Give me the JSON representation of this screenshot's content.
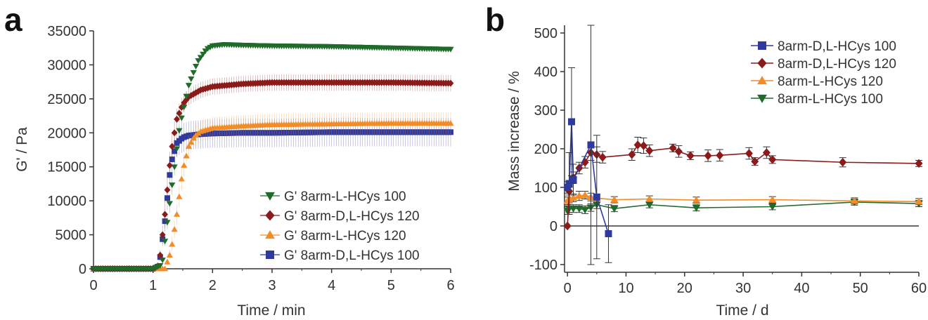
{
  "panel_a": {
    "letter": "a",
    "xlabel": "Time / min",
    "ylabel": "G' / Pa",
    "legend": [
      "G' 8arm-L-HCys 100",
      "G' 8arm-D,L-HCys 120",
      "G' 8arm-L-HCys 120",
      "G' 8arm-D,L-HCys 100"
    ]
  },
  "panel_b": {
    "letter": "b",
    "xlabel": "Time / d",
    "ylabel": "Mass increase / %",
    "legend": [
      "8arm-D,L-HCys 100",
      "8arm-D,L-HCys 120",
      "8arm-L-HCys 120",
      "8arm-L-HCys 100"
    ]
  },
  "colors": {
    "green": "#1f6b2a",
    "darkred": "#8b1a1a",
    "orange": "#f28c28",
    "blue": "#2e3a9e"
  },
  "chart_data": [
    {
      "type": "line",
      "panel": "a",
      "xlabel": "Time / min",
      "ylabel": "G' / Pa",
      "xlim": [
        0,
        6
      ],
      "ylim": [
        0,
        35000
      ],
      "xticks": [
        0,
        1,
        2,
        3,
        4,
        5,
        6
      ],
      "yticks": [
        0,
        5000,
        10000,
        15000,
        20000,
        25000,
        30000,
        35000
      ],
      "grid": false,
      "legend_position": "bottom-right",
      "series": [
        {
          "name": "G' 8arm-L-HCys 100",
          "color": "#1f6b2a",
          "marker": "triangle-down",
          "x": [
            0,
            1.0,
            1.15,
            1.3,
            1.45,
            1.6,
            1.75,
            1.9,
            2.0,
            2.2,
            2.5,
            3,
            4,
            5,
            6
          ],
          "y": [
            0,
            0,
            600,
            11000,
            21000,
            27000,
            30500,
            32300,
            32800,
            33000,
            32900,
            32800,
            32700,
            32500,
            32300
          ],
          "err": [
            0,
            0,
            300,
            1500,
            1000,
            600,
            400,
            300,
            300,
            300,
            300,
            300,
            300,
            300,
            300
          ]
        },
        {
          "name": "G' 8arm-D,L-HCys 120",
          "color": "#8b1a1a",
          "marker": "diamond",
          "x": [
            0,
            1.0,
            1.1,
            1.2,
            1.3,
            1.4,
            1.5,
            1.6,
            1.8,
            2.0,
            2.5,
            3,
            4,
            5,
            6
          ],
          "y": [
            0,
            0,
            500,
            8000,
            17000,
            22000,
            24200,
            25300,
            26300,
            26800,
            27200,
            27400,
            27400,
            27400,
            27300
          ],
          "err": [
            0,
            0,
            400,
            2000,
            2000,
            1500,
            1300,
            1200,
            1200,
            1200,
            1200,
            1200,
            1200,
            1200,
            1200
          ]
        },
        {
          "name": "G' 8arm-L-HCys 120",
          "color": "#f28c28",
          "marker": "triangle-up",
          "x": [
            0,
            1.2,
            1.3,
            1.4,
            1.5,
            1.6,
            1.7,
            1.8,
            2.0,
            2.5,
            3,
            4,
            5,
            6
          ],
          "y": [
            0,
            0,
            2500,
            8000,
            14500,
            18000,
            19500,
            20200,
            20700,
            21000,
            21200,
            21300,
            21400,
            21400
          ],
          "err": [
            0,
            0,
            1000,
            1500,
            1600,
            1600,
            1600,
            1600,
            1600,
            1600,
            1600,
            1600,
            1600,
            1600
          ]
        },
        {
          "name": "G' 8arm-D,L-HCys 100",
          "color": "#2e3a9e",
          "marker": "square",
          "x": [
            0,
            1.0,
            1.1,
            1.2,
            1.3,
            1.4,
            1.5,
            1.6,
            1.8,
            2.0,
            2.5,
            3,
            4,
            5,
            6
          ],
          "y": [
            0,
            0,
            400,
            7000,
            15500,
            18500,
            19300,
            19600,
            19800,
            19900,
            20000,
            20000,
            20100,
            20100,
            20100
          ],
          "err": [
            0,
            0,
            300,
            1500,
            2000,
            2100,
            2100,
            2100,
            2100,
            2100,
            2100,
            2100,
            2100,
            2100,
            2100
          ]
        }
      ]
    },
    {
      "type": "line",
      "panel": "b",
      "xlabel": "Time / d",
      "ylabel": "Mass increase / %",
      "xlim": [
        -0.5,
        60
      ],
      "ylim": [
        -120,
        520
      ],
      "xticks": [
        0,
        10,
        20,
        30,
        40,
        50,
        60
      ],
      "yticks": [
        -100,
        0,
        100,
        200,
        300,
        400,
        500
      ],
      "grid": false,
      "zero_line": true,
      "legend_position": "top-right",
      "series": [
        {
          "name": "8arm-D,L-HCys 100",
          "color": "#2e3a9e",
          "marker": "square",
          "x": [
            0,
            0.3,
            0.7,
            1,
            4,
            5,
            7
          ],
          "y": [
            100,
            110,
            270,
            120,
            210,
            75,
            -20
          ],
          "err": [
            15,
            80,
            140,
            40,
            310,
            160,
            75
          ]
        },
        {
          "name": "8arm-D,L-HCys 120",
          "color": "#8b1a1a",
          "marker": "diamond",
          "x": [
            0,
            0.3,
            1,
            2,
            3,
            4,
            5,
            6,
            11,
            12,
            13,
            14,
            18,
            19,
            21,
            24,
            26,
            31,
            32,
            34,
            35,
            47,
            60
          ],
          "y": [
            0,
            90,
            125,
            150,
            165,
            190,
            185,
            178,
            185,
            210,
            208,
            195,
            202,
            193,
            182,
            182,
            183,
            188,
            167,
            190,
            172,
            165,
            162
          ],
          "err": [
            0,
            10,
            15,
            15,
            15,
            20,
            20,
            15,
            15,
            20,
            20,
            15,
            10,
            15,
            10,
            15,
            15,
            15,
            10,
            15,
            10,
            12,
            8
          ]
        },
        {
          "name": "8arm-L-HCys 120",
          "color": "#f28c28",
          "marker": "triangle-up",
          "x": [
            0,
            0.3,
            1,
            2,
            3,
            4,
            5,
            8,
            14,
            22,
            35,
            49,
            60
          ],
          "y": [
            65,
            70,
            73,
            78,
            80,
            75,
            72,
            68,
            70,
            67,
            68,
            65,
            63
          ],
          "err": [
            10,
            10,
            10,
            12,
            10,
            10,
            10,
            8,
            8,
            8,
            8,
            8,
            8
          ]
        },
        {
          "name": "8arm-L-HCys 100",
          "color": "#1f6b2a",
          "marker": "triangle-down",
          "x": [
            0,
            0.3,
            1,
            2,
            3,
            4,
            5,
            8,
            14,
            22,
            35,
            49,
            60
          ],
          "y": [
            40,
            45,
            45,
            45,
            42,
            48,
            55,
            45,
            55,
            47,
            50,
            62,
            58
          ],
          "err": [
            10,
            10,
            10,
            10,
            10,
            10,
            10,
            8,
            8,
            8,
            8,
            8,
            8
          ]
        }
      ]
    }
  ]
}
